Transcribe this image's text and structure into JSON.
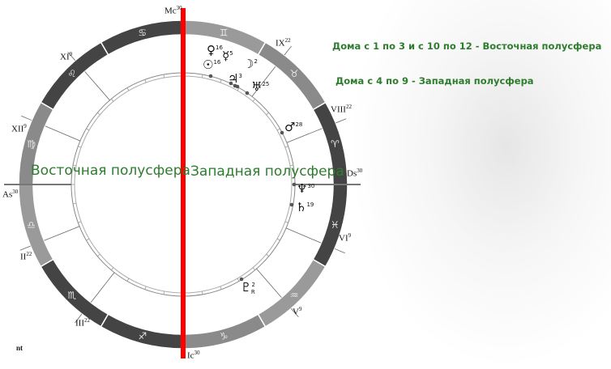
{
  "notes": {
    "east_houses": "Дома с 1 по 3 и с 10 по 12 - Восточная полусфера",
    "west_houses": "Дома с 4 по 9 - Западная полусфера"
  },
  "hemispheres": {
    "east": "Восточная полусфера",
    "west": "Западная полусфера",
    "divider_color": "#ff0000"
  },
  "angles": [
    {
      "label": "Mc",
      "deg": "30"
    },
    {
      "label": "Ic",
      "deg": "30"
    },
    {
      "label": "As",
      "deg": "30"
    },
    {
      "label": "Ds",
      "deg": "30"
    }
  ],
  "houses": [
    {
      "label": "IX",
      "deg": "22"
    },
    {
      "label": "XI",
      "deg": "9"
    },
    {
      "label": "XII",
      "deg": "9"
    },
    {
      "label": "VIII",
      "deg": "22"
    },
    {
      "label": "VI",
      "deg": "9"
    },
    {
      "label": "V",
      "deg": "9"
    },
    {
      "label": "II",
      "deg": "22"
    },
    {
      "label": "III",
      "deg": "22"
    }
  ],
  "signs": [
    {
      "name": "aries",
      "glyph": "♈",
      "color": "#444444"
    },
    {
      "name": "taurus",
      "glyph": "♉",
      "color": "#8a8a8a"
    },
    {
      "name": "gemini",
      "glyph": "♊",
      "color": "#9a9a9a"
    },
    {
      "name": "cancer",
      "glyph": "♋",
      "color": "#444444"
    },
    {
      "name": "leo",
      "glyph": "♌",
      "color": "#444444"
    },
    {
      "name": "virgo",
      "glyph": "♍",
      "color": "#8a8a8a"
    },
    {
      "name": "libra",
      "glyph": "♎",
      "color": "#9a9a9a"
    },
    {
      "name": "scorpio",
      "glyph": "♏",
      "color": "#444444"
    },
    {
      "name": "sagittarius",
      "glyph": "♐",
      "color": "#444444"
    },
    {
      "name": "capricorn",
      "glyph": "♑",
      "color": "#8a8a8a"
    },
    {
      "name": "aquarius",
      "glyph": "♒",
      "color": "#9a9a9a"
    },
    {
      "name": "pisces",
      "glyph": "♓",
      "color": "#444444"
    }
  ],
  "planets": [
    {
      "name": "venus",
      "glyph": "♀",
      "deg": "16"
    },
    {
      "name": "sun",
      "glyph": "☉",
      "deg": "16"
    },
    {
      "name": "mercury",
      "glyph": "☿",
      "deg": "5"
    },
    {
      "name": "moon",
      "glyph": "☽",
      "deg": "2"
    },
    {
      "name": "jupiter",
      "glyph": "♃",
      "deg": "3"
    },
    {
      "name": "uranus",
      "glyph": "♅",
      "deg": "25"
    },
    {
      "name": "mars",
      "glyph": "♂",
      "deg": "28"
    },
    {
      "name": "neptune",
      "glyph": "♆",
      "deg": "30"
    },
    {
      "name": "saturn",
      "glyph": "♄",
      "deg": "19"
    },
    {
      "name": "pluto",
      "glyph": "♇",
      "deg": "2",
      "retro": "R"
    }
  ],
  "footer_mark": "nt"
}
